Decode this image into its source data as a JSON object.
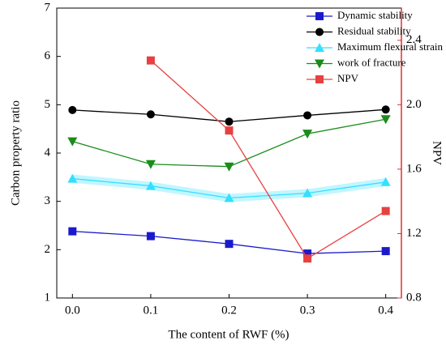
{
  "chart_data": {
    "type": "line",
    "x_label": "The content of RWF (%)",
    "y_label": "Carbon property ratio",
    "y2_label": "NPV",
    "x": [
      0,
      0.1,
      0.2,
      0.3,
      0.4
    ],
    "xlim": [
      -0.02,
      0.42
    ],
    "xticks": [
      {
        "value": 0,
        "label": "0.0"
      },
      0.1,
      0.2,
      0.3,
      0.4
    ],
    "ylim": [
      1,
      7
    ],
    "yticks": [
      1,
      2,
      3,
      4,
      5,
      6,
      7
    ],
    "y2lim": [
      0.8,
      2.6
    ],
    "y2ticks": [
      0.8,
      1.2,
      1.6,
      {
        "value": 2,
        "label": "2.0"
      },
      2.4
    ],
    "y2_color": "#e03030",
    "legend": "upper right",
    "series": [
      {
        "name": "Dynamic stability",
        "color": "#1a1acc",
        "marker": "square",
        "values": [
          2.38,
          2.28,
          2.12,
          1.92,
          1.97
        ]
      },
      {
        "name": "Residual stability",
        "color": "#000000",
        "marker": "circle",
        "values": [
          4.89,
          4.8,
          4.65,
          4.78,
          4.9
        ]
      },
      {
        "name": "Maximum flexural strain",
        "color": "#33e0ff",
        "marker": "triangle-up",
        "values": [
          3.47,
          3.32,
          3.07,
          3.17,
          3.4
        ]
      },
      {
        "name": "work of fracture",
        "color": "#1a8c1a",
        "marker": "triangle-down",
        "values": [
          4.24,
          3.77,
          3.72,
          4.4,
          4.7
        ]
      },
      {
        "name": "NPV",
        "color": "#e84040",
        "marker": "square",
        "axis": "y2",
        "values": [
          null,
          2.275,
          1.84,
          1.045,
          1.34
        ]
      }
    ]
  }
}
